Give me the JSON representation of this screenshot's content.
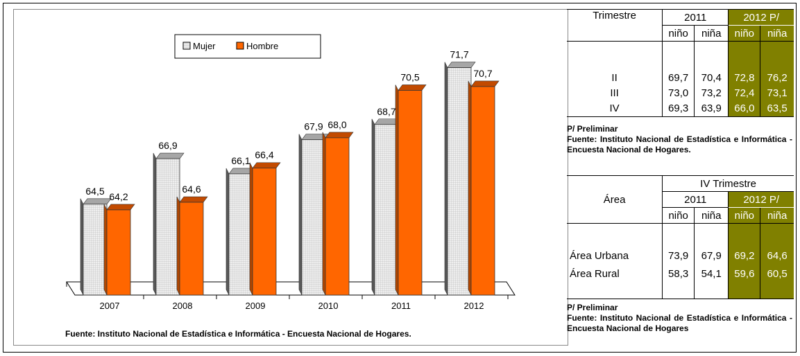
{
  "chart_data": {
    "type": "bar",
    "categories": [
      "2007",
      "2008",
      "2009",
      "2010",
      "2011",
      "2012"
    ],
    "series": [
      {
        "name": "Mujer",
        "values": [
          64.5,
          66.9,
          66.1,
          67.9,
          68.7,
          71.7
        ],
        "labels": [
          "64,5",
          "66,9",
          "66,1",
          "67,9",
          "68,7",
          "71,7"
        ]
      },
      {
        "name": "Hombre",
        "values": [
          64.2,
          64.6,
          66.4,
          68.0,
          70.5,
          70.7
        ],
        "labels": [
          "64,2",
          "64,6",
          "66,4",
          "68,0",
          "70,5",
          "70,7"
        ]
      }
    ],
    "ylim": [
      60,
      73
    ],
    "grid": false,
    "legend_position": "top-center",
    "colors": {
      "Mujer": "#d9d9d9",
      "Hombre": "#ff6600"
    },
    "source": "Fuente: Instituto Nacional de Estadística e Informática - Encuesta Nacional de Hogares."
  },
  "table_trimestre": {
    "header": "Trimestre",
    "year1": "2011",
    "year2": "2012 P/",
    "sub": [
      "niño",
      "niña",
      "niño",
      "niña"
    ],
    "rows": [
      {
        "label": "II",
        "values": [
          "69,7",
          "70,4",
          "72,8",
          "76,2"
        ]
      },
      {
        "label": "III",
        "values": [
          "73,0",
          "73,2",
          "72,4",
          "73,1"
        ]
      },
      {
        "label": "IV",
        "values": [
          "69,3",
          "63,9",
          "66,0",
          "63,5"
        ]
      }
    ],
    "note": "P/ Preliminar",
    "source": "Fuente: Instituto Nacional de Estadística e Informática - Encuesta Nacional de Hogares."
  },
  "table_area": {
    "header": "Área",
    "group": "IV Trimestre",
    "year1": "2011",
    "year2": "2012 P/",
    "sub": [
      "niño",
      "niña",
      "niño",
      "niña"
    ],
    "rows": [
      {
        "label": "Área Urbana",
        "values": [
          "73,9",
          "67,9",
          "69,2",
          "64,6"
        ]
      },
      {
        "label": "Área Rural",
        "values": [
          "58,3",
          "54,1",
          "59,6",
          "60,5"
        ]
      }
    ],
    "note": "P/ Preliminar",
    "source": "Fuente: Instituto Nacional de Estadística e Informática - Encuesta Nacional de Hogares"
  }
}
